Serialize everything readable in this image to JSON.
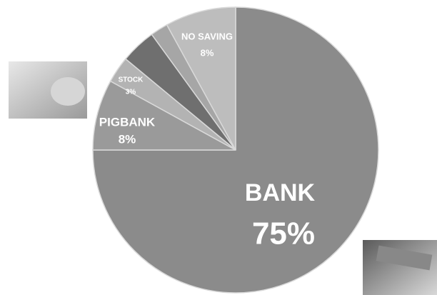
{
  "chart_data": {
    "type": "pie",
    "categories": [
      "BANK",
      "PIGBANK",
      "STOCK",
      null,
      null,
      "NO SAVING"
    ],
    "values": [
      75,
      8,
      3,
      4,
      2,
      8
    ],
    "value_labels": [
      "75%",
      "8%",
      "3%",
      null,
      null,
      "8%"
    ],
    "colors": [
      "#8b8b8b",
      "#9a9a9a",
      "#b3b3b3",
      "#6f6f6f",
      "#a6a6a6",
      "#bdbdbd"
    ]
  }
}
